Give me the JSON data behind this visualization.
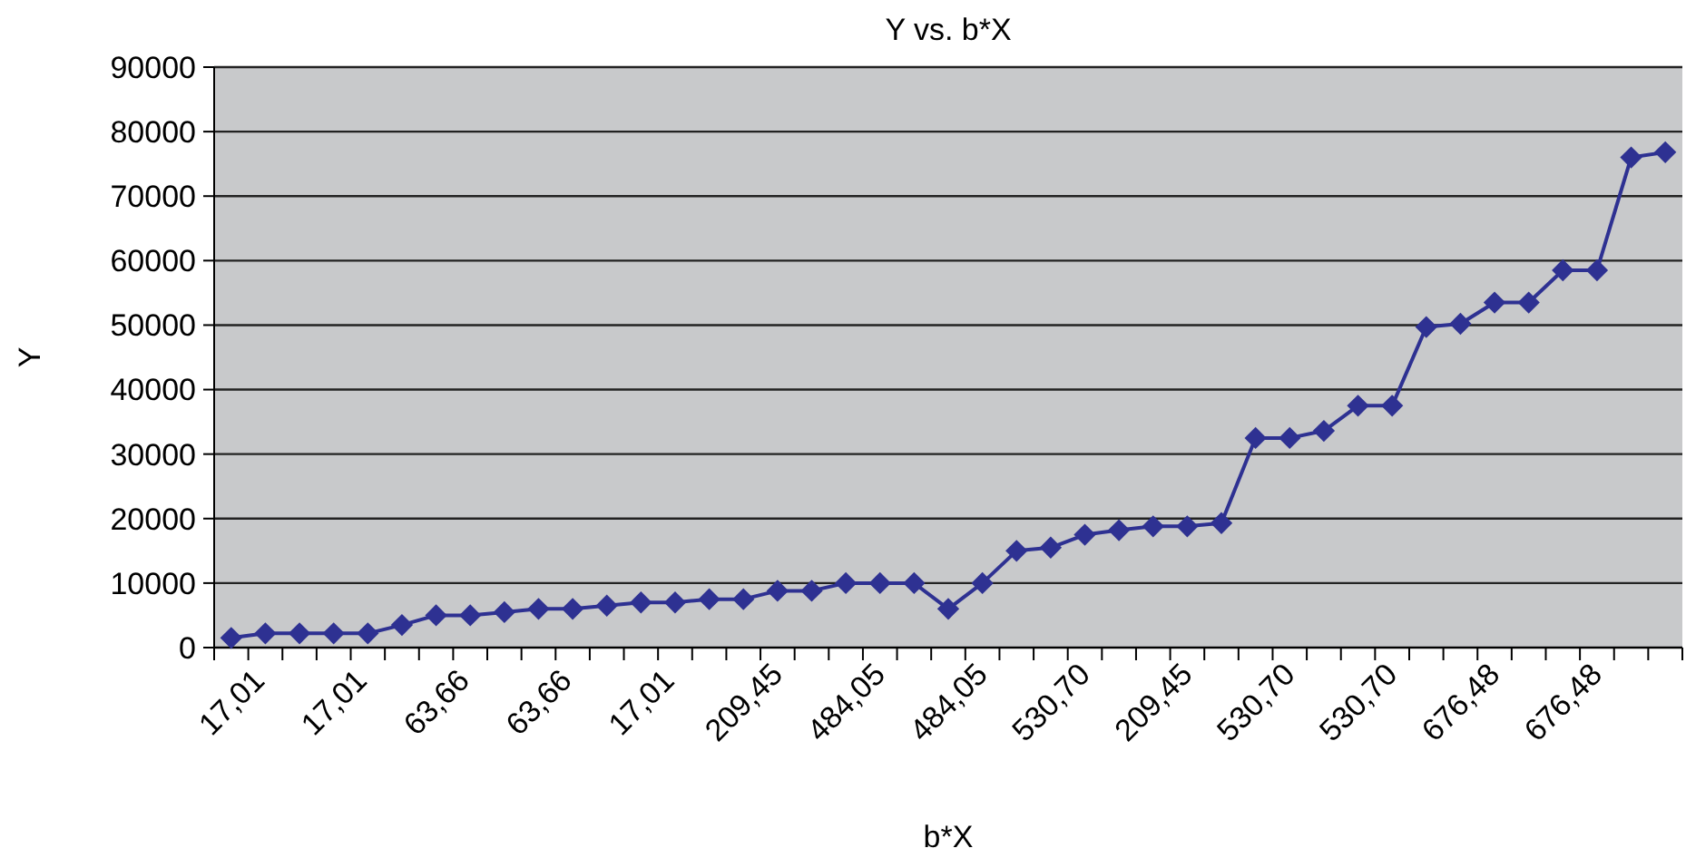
{
  "chart_data": {
    "type": "line",
    "title": "Y vs. b*X",
    "xlabel": "b*X",
    "ylabel": "Y",
    "categories": [
      "17,01",
      null,
      null,
      "17,01",
      null,
      null,
      "63,66",
      null,
      null,
      "63,66",
      null,
      null,
      "17,01",
      null,
      null,
      "209,45",
      null,
      null,
      "484,05",
      null,
      null,
      "484,05",
      null,
      null,
      "530,70",
      null,
      null,
      "209,45",
      null,
      null,
      "530,70",
      null,
      null,
      "530,70",
      null,
      null,
      "676,48",
      null,
      null,
      "676,48",
      null,
      null,
      null
    ],
    "series": [
      {
        "color": "#2e3192",
        "values": [
          1500,
          2200,
          2200,
          2200,
          2200,
          3500,
          5000,
          5000,
          5500,
          6000,
          6000,
          6500,
          7000,
          7000,
          7500,
          7500,
          8800,
          8800,
          10000,
          10000,
          10000,
          6000,
          10000,
          15000,
          15500,
          17500,
          18200,
          18800,
          18800,
          19300,
          32500,
          32500,
          33600,
          37500,
          37500,
          49700,
          50200,
          53500,
          53500,
          58500,
          58500,
          76000,
          76800
        ]
      }
    ],
    "ylim": [
      0,
      90000
    ],
    "yticks": [
      0,
      10000,
      20000,
      30000,
      40000,
      50000,
      60000,
      70000,
      80000,
      90000
    ],
    "grid": "y",
    "marker": "diamond",
    "line_style": "solid"
  }
}
